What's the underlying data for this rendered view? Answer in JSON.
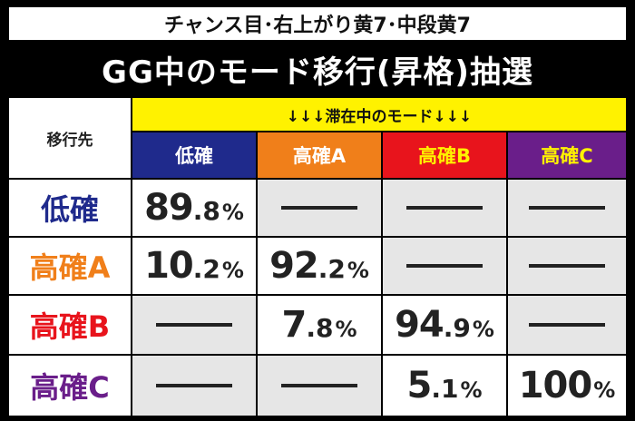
{
  "subtitle": "チャンス目･右上がり黄7･中段黄7",
  "title": "GG中のモード移行(昇格)抽選",
  "header": {
    "destination_label": "移行先",
    "current_mode_label": "↓↓↓滞在中のモード↓↓↓"
  },
  "columns": [
    {
      "label": "低確",
      "bg": "#1f2a8c",
      "fg": "#ffffff"
    },
    {
      "label": "高確A",
      "bg": "#f07f1a",
      "fg": "#ffffff"
    },
    {
      "label": "高確B",
      "bg": "#e8141c",
      "fg": "#fff200"
    },
    {
      "label": "高確C",
      "bg": "#6a1e8a",
      "fg": "#fff200"
    }
  ],
  "rows": [
    {
      "label": "低確",
      "color": "#1f2a8c",
      "cells": [
        {
          "int": "89",
          "dec": ".8",
          "pct": "%"
        },
        null,
        null,
        null
      ]
    },
    {
      "label": "高確A",
      "color": "#f07f1a",
      "cells": [
        {
          "int": "10",
          "dec": ".2",
          "pct": "%"
        },
        {
          "int": "92",
          "dec": ".2",
          "pct": "%"
        },
        null,
        null
      ]
    },
    {
      "label": "高確B",
      "color": "#e8141c",
      "cells": [
        null,
        {
          "int": "7",
          "dec": ".8",
          "pct": "%"
        },
        {
          "int": "94",
          "dec": ".9",
          "pct": "%"
        },
        null
      ]
    },
    {
      "label": "高確C",
      "color": "#6a1e8a",
      "cells": [
        null,
        null,
        {
          "int": "5",
          "dec": ".1",
          "pct": "%"
        },
        {
          "int": "100",
          "dec": "",
          "pct": "%"
        }
      ]
    }
  ]
}
